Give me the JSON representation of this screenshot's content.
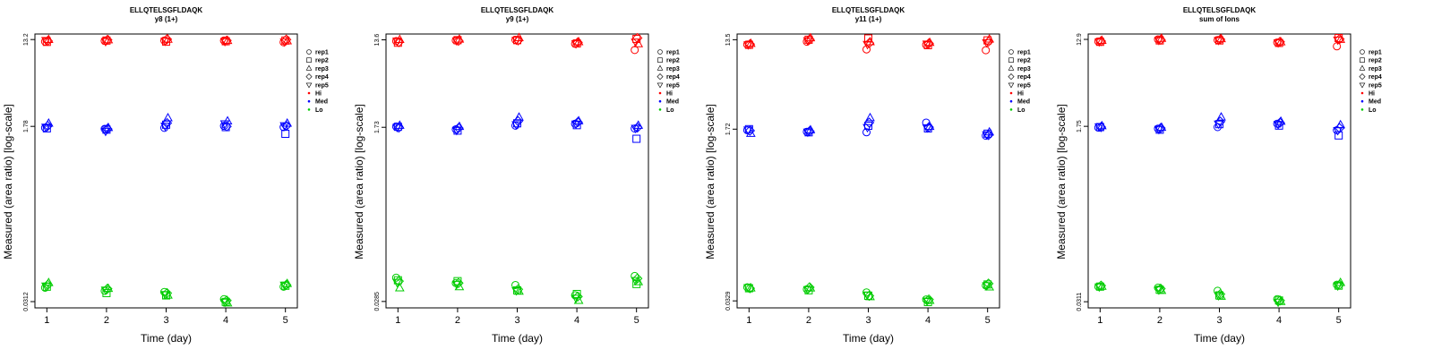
{
  "chart_data": [
    {
      "type": "scatter",
      "title": "ELLQTELSGFLDAQK",
      "subtitle": "y8 (1+)",
      "xlabel": "Time (day)",
      "ylabel": "Measured (area ratio) [log-scale]",
      "y_scale": "log",
      "x_ticks": [
        "1",
        "2",
        "3",
        "4",
        "5"
      ],
      "y_ticks": [
        {
          "value": 0.0312,
          "label": "0.0312"
        },
        {
          "value": 1.78,
          "label": "1.78"
        },
        {
          "value": 13.2,
          "label": "13.2"
        }
      ],
      "xlim": [
        0.8,
        5.2
      ],
      "ylim": [
        0.027,
        15.0
      ],
      "legend_position": "right",
      "legend": [
        "rep1",
        "rep2",
        "rep3",
        "rep4",
        "rep5",
        "Hi",
        "Med",
        "Lo"
      ],
      "groups": [
        {
          "name": "Hi",
          "color": "#ff0000",
          "reps": [
            [
              12.6,
              12.8,
              12.9,
              12.9,
              12.4
            ],
            [
              12.5,
              12.9,
              12.6,
              12.7,
              12.9
            ],
            [
              13.1,
              13.0,
              13.2,
              12.8,
              12.7
            ],
            [
              12.8,
              13.1,
              13.3,
              12.9,
              13.2
            ],
            [
              13.0,
              12.7,
              12.8,
              12.7,
              12.6
            ]
          ]
        },
        {
          "name": "Med",
          "color": "#0000ff",
          "reps": [
            [
              1.72,
              1.68,
              1.72,
              1.8,
              1.75
            ],
            [
              1.7,
              1.65,
              1.85,
              1.75,
              1.5
            ],
            [
              1.9,
              1.72,
              2.15,
              2.0,
              1.9
            ],
            [
              1.8,
              1.68,
              1.92,
              1.78,
              1.8
            ],
            [
              1.76,
              1.6,
              1.8,
              1.9,
              1.82
            ]
          ]
        },
        {
          "name": "Lo",
          "color": "#00cc00",
          "reps": [
            [
              0.043,
              0.04,
              0.039,
              0.033,
              0.044
            ],
            [
              0.044,
              0.038,
              0.036,
              0.031,
              0.045
            ],
            [
              0.048,
              0.042,
              0.036,
              0.03,
              0.047
            ],
            [
              0.046,
              0.042,
              0.038,
              0.032,
              0.046
            ],
            [
              0.045,
              0.041,
              0.037,
              0.031,
              0.046
            ]
          ]
        }
      ]
    },
    {
      "type": "scatter",
      "title": "ELLQTELSGFLDAQK",
      "subtitle": "y9 (1+)",
      "xlabel": "Time (day)",
      "ylabel": "Measured (area ratio) [log-scale]",
      "y_scale": "log",
      "x_ticks": [
        "1",
        "2",
        "3",
        "4",
        "5"
      ],
      "y_ticks": [
        {
          "value": 0.0285,
          "label": "0.0285"
        },
        {
          "value": 1.73,
          "label": "1.73"
        },
        {
          "value": 13.6,
          "label": "13.6"
        }
      ],
      "xlim": [
        0.8,
        5.2
      ],
      "ylim": [
        0.0245,
        15.6
      ],
      "legend_position": "right",
      "legend": [
        "rep1",
        "rep2",
        "rep3",
        "rep4",
        "rep5",
        "Hi",
        "Med",
        "Lo"
      ],
      "groups": [
        {
          "name": "Hi",
          "color": "#ff0000",
          "reps": [
            [
              13.2,
              13.4,
              13.6,
              12.4,
              10.7
            ],
            [
              12.7,
              13.5,
              13.5,
              12.5,
              13.9
            ],
            [
              13.6,
              13.7,
              14.2,
              12.9,
              12.3
            ],
            [
              12.9,
              13.3,
              13.4,
              12.8,
              14.2
            ],
            [
              13.3,
              13.4,
              13.6,
              12.5,
              13.0
            ]
          ]
        },
        {
          "name": "Med",
          "color": "#0000ff",
          "reps": [
            [
              1.76,
              1.65,
              1.8,
              1.88,
              1.68
            ],
            [
              1.75,
              1.6,
              1.9,
              1.82,
              1.32
            ],
            [
              1.8,
              1.75,
              2.18,
              2.0,
              1.8
            ],
            [
              1.72,
              1.7,
              2.0,
              1.95,
              1.72
            ],
            [
              1.74,
              1.62,
              1.85,
              1.88,
              1.7
            ]
          ]
        },
        {
          "name": "Lo",
          "color": "#00cc00",
          "reps": [
            [
              0.05,
              0.044,
              0.042,
              0.033,
              0.052
            ],
            [
              0.047,
              0.046,
              0.037,
              0.034,
              0.043
            ],
            [
              0.039,
              0.04,
              0.036,
              0.029,
              0.045
            ],
            [
              0.046,
              0.044,
              0.038,
              0.032,
              0.049
            ],
            [
              0.045,
              0.043,
              0.037,
              0.031,
              0.047
            ]
          ]
        }
      ]
    },
    {
      "type": "scatter",
      "title": "ELLQTELSGFLDAQK",
      "subtitle": "y11 (1+)",
      "xlabel": "Time (day)",
      "ylabel": "Measured (area ratio) [log-scale]",
      "y_scale": "log",
      "x_ticks": [
        "1",
        "2",
        "3",
        "4",
        "5"
      ],
      "y_ticks": [
        {
          "value": 0.0329,
          "label": "0.0329"
        },
        {
          "value": 1.72,
          "label": "1.72"
        },
        {
          "value": 13.5,
          "label": "13.5"
        }
      ],
      "xlim": [
        0.8,
        5.2
      ],
      "ylim": [
        0.028,
        15.4
      ],
      "legend_position": "right",
      "legend": [
        "rep1",
        "rep2",
        "rep3",
        "rep4",
        "rep5",
        "Hi",
        "Med",
        "Lo"
      ],
      "groups": [
        {
          "name": "Hi",
          "color": "#ff0000",
          "reps": [
            [
              12.1,
              12.9,
              10.8,
              12.0,
              10.6
            ],
            [
              12.0,
              13.5,
              13.9,
              11.9,
              13.3
            ],
            [
              12.3,
              14.0,
              12.8,
              12.6,
              13.6
            ],
            [
              12.2,
              13.6,
              12.5,
              12.4,
              12.9
            ],
            [
              12.1,
              13.3,
              12.2,
              12.3,
              12.7
            ]
          ]
        },
        {
          "name": "Med",
          "color": "#0000ff",
          "reps": [
            [
              1.68,
              1.62,
              1.6,
              2.0,
              1.48
            ],
            [
              1.72,
              1.6,
              1.86,
              1.75,
              1.55
            ],
            [
              1.55,
              1.68,
              2.22,
              1.82,
              1.6
            ],
            [
              1.66,
              1.64,
              2.0,
              1.8,
              1.5
            ],
            [
              1.7,
              1.62,
              1.8,
              1.78,
              1.52
            ]
          ]
        },
        {
          "name": "Lo",
          "color": "#00cc00",
          "reps": [
            [
              0.045,
              0.043,
              0.04,
              0.034,
              0.047
            ],
            [
              0.044,
              0.042,
              0.037,
              0.032,
              0.048
            ],
            [
              0.044,
              0.044,
              0.036,
              0.033,
              0.045
            ],
            [
              0.044,
              0.045,
              0.037,
              0.034,
              0.049
            ],
            [
              0.045,
              0.043,
              0.038,
              0.033,
              0.047
            ]
          ]
        }
      ]
    },
    {
      "type": "scatter",
      "title": "ELLQTELSGFLDAQK",
      "subtitle": "sum of Ions",
      "xlabel": "Time (day)",
      "ylabel": "Measured (area ratio) [log-scale]",
      "y_scale": "log",
      "x_ticks": [
        "1",
        "2",
        "3",
        "4",
        "5"
      ],
      "y_ticks": [
        {
          "value": 0.0311,
          "label": "0.0311"
        },
        {
          "value": 1.75,
          "label": "1.75"
        },
        {
          "value": 12.9,
          "label": "12.9"
        }
      ],
      "xlim": [
        0.8,
        5.2
      ],
      "ylim": [
        0.027,
        14.6
      ],
      "legend_position": "right",
      "legend": [
        "rep1",
        "rep2",
        "rep3",
        "rep4",
        "rep5",
        "Hi",
        "Med",
        "Lo"
      ],
      "groups": [
        {
          "name": "Hi",
          "color": "#ff0000",
          "reps": [
            [
              12.3,
              12.9,
              12.7,
              12.0,
              11.0
            ],
            [
              12.2,
              12.6,
              12.6,
              11.9,
              13.3
            ],
            [
              12.5,
              13.1,
              13.0,
              12.1,
              12.8
            ],
            [
              12.4,
              12.8,
              12.9,
              12.2,
              13.0
            ],
            [
              12.3,
              12.7,
              12.7,
              12.0,
              12.8
            ]
          ]
        },
        {
          "name": "Med",
          "color": "#0000ff",
          "reps": [
            [
              1.7,
              1.66,
              1.72,
              1.86,
              1.6
            ],
            [
              1.72,
              1.62,
              1.84,
              1.78,
              1.42
            ],
            [
              1.76,
              1.7,
              2.15,
              1.95,
              1.8
            ],
            [
              1.72,
              1.68,
              1.95,
              1.9,
              1.68
            ],
            [
              1.74,
              1.64,
              1.86,
              1.84,
              1.6
            ]
          ]
        },
        {
          "name": "Lo",
          "color": "#00cc00",
          "reps": [
            [
              0.044,
              0.043,
              0.04,
              0.033,
              0.046
            ],
            [
              0.044,
              0.041,
              0.036,
              0.032,
              0.045
            ],
            [
              0.044,
              0.04,
              0.035,
              0.031,
              0.048
            ],
            [
              0.045,
              0.042,
              0.037,
              0.032,
              0.046
            ],
            [
              0.044,
              0.041,
              0.036,
              0.031,
              0.045
            ]
          ]
        }
      ]
    }
  ]
}
